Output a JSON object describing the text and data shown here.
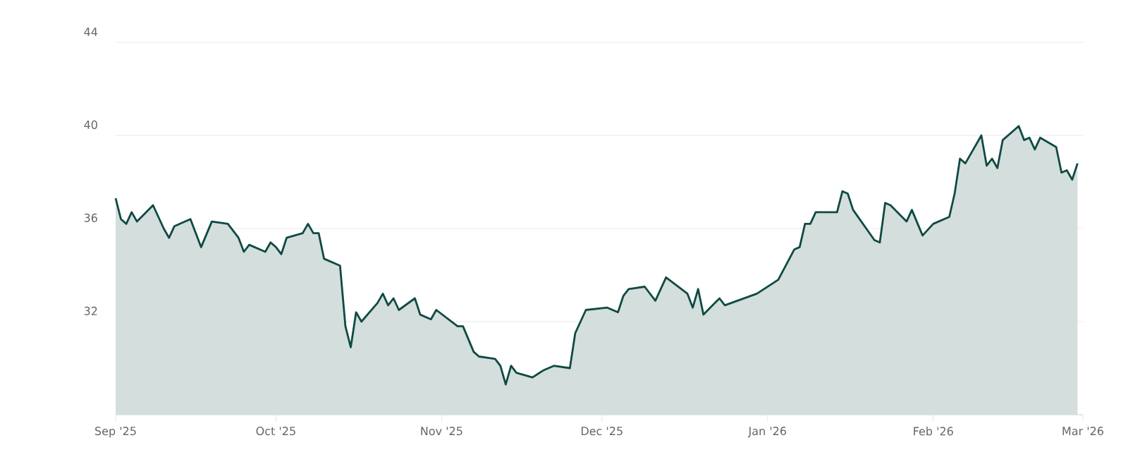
{
  "chart_data": {
    "type": "area",
    "color": "#0f4a44",
    "grid": "y",
    "marker": "none",
    "line_style": "solid",
    "xlim": [
      "2025-09-01",
      "2026-03-01"
    ],
    "xticks": [
      {
        "value": "2025-09-01",
        "label": "Sep '25"
      },
      {
        "value": "2025-10-01",
        "label": "Oct '25"
      },
      {
        "value": "2025-11-01",
        "label": "Nov '25"
      },
      {
        "value": "2025-12-01",
        "label": "Dec '25"
      },
      {
        "value": "2026-01-01",
        "label": "Jan '26"
      },
      {
        "value": "2026-02-01",
        "label": "Feb '26"
      },
      {
        "value": "2026-03-01",
        "label": "Mar '26"
      }
    ],
    "ylim": [
      28,
      44
    ],
    "yticks": [
      32,
      36,
      40,
      44
    ],
    "x": [
      "2025-09-01",
      "2025-09-02",
      "2025-09-03",
      "2025-09-04",
      "2025-09-05",
      "2025-09-08",
      "2025-09-10",
      "2025-09-11",
      "2025-09-12",
      "2025-09-15",
      "2025-09-17",
      "2025-09-19",
      "2025-09-22",
      "2025-09-24",
      "2025-09-25",
      "2025-09-26",
      "2025-09-29",
      "2025-09-30",
      "2025-10-01",
      "2025-10-02",
      "2025-10-03",
      "2025-10-06",
      "2025-10-07",
      "2025-10-08",
      "2025-10-09",
      "2025-10-10",
      "2025-10-13",
      "2025-10-14",
      "2025-10-15",
      "2025-10-16",
      "2025-10-17",
      "2025-10-20",
      "2025-10-21",
      "2025-10-22",
      "2025-10-23",
      "2025-10-24",
      "2025-10-27",
      "2025-10-28",
      "2025-10-30",
      "2025-10-31",
      "2025-11-04",
      "2025-11-05",
      "2025-11-07",
      "2025-11-08",
      "2025-11-11",
      "2025-11-12",
      "2025-11-13",
      "2025-11-14",
      "2025-11-15",
      "2025-11-18",
      "2025-11-20",
      "2025-11-22",
      "2025-11-25",
      "2025-11-26",
      "2025-11-28",
      "2025-12-02",
      "2025-12-04",
      "2025-12-05",
      "2025-12-06",
      "2025-12-09",
      "2025-12-11",
      "2025-12-13",
      "2025-12-17",
      "2025-12-18",
      "2025-12-19",
      "2025-12-20",
      "2025-12-23",
      "2025-12-24",
      "2025-12-30",
      "2026-01-03",
      "2026-01-06",
      "2026-01-07",
      "2026-01-08",
      "2026-01-09",
      "2026-01-10",
      "2026-01-14",
      "2026-01-15",
      "2026-01-16",
      "2026-01-17",
      "2026-01-21",
      "2026-01-22",
      "2026-01-23",
      "2026-01-24",
      "2026-01-27",
      "2026-01-28",
      "2026-01-30",
      "2026-02-01",
      "2026-02-04",
      "2026-02-05",
      "2026-02-06",
      "2026-02-07",
      "2026-02-10",
      "2026-02-11",
      "2026-02-12",
      "2026-02-13",
      "2026-02-14",
      "2026-02-17",
      "2026-02-18",
      "2026-02-19",
      "2026-02-20",
      "2026-02-21",
      "2026-02-24",
      "2026-02-25",
      "2026-02-26",
      "2026-02-27",
      "2026-02-28"
    ],
    "values": [
      37.3,
      36.4,
      36.2,
      36.7,
      36.3,
      37.0,
      36.0,
      35.6,
      36.1,
      36.4,
      35.2,
      36.3,
      36.2,
      35.6,
      35.0,
      35.3,
      35.0,
      35.4,
      35.2,
      34.9,
      35.6,
      35.8,
      36.2,
      35.8,
      35.8,
      34.7,
      34.4,
      31.8,
      30.9,
      32.4,
      32.0,
      32.8,
      33.2,
      32.7,
      33.0,
      32.5,
      33.0,
      32.3,
      32.1,
      32.5,
      31.8,
      31.8,
      30.7,
      30.5,
      30.4,
      30.1,
      29.3,
      30.1,
      29.8,
      29.6,
      29.9,
      30.1,
      30.0,
      31.5,
      32.5,
      32.6,
      32.4,
      33.1,
      33.4,
      33.5,
      32.9,
      33.9,
      33.2,
      32.6,
      33.4,
      32.3,
      33.0,
      32.7,
      33.2,
      33.8,
      35.1,
      35.2,
      36.2,
      36.2,
      36.7,
      36.7,
      37.6,
      37.5,
      36.8,
      35.5,
      35.4,
      37.1,
      37.0,
      36.3,
      36.8,
      35.7,
      36.2,
      36.5,
      37.5,
      39.0,
      38.8,
      40.0,
      38.7,
      39.0,
      38.6,
      39.8,
      40.4,
      39.8,
      39.9,
      39.4,
      39.9,
      39.5,
      38.4,
      38.5,
      38.1,
      38.8
    ]
  }
}
